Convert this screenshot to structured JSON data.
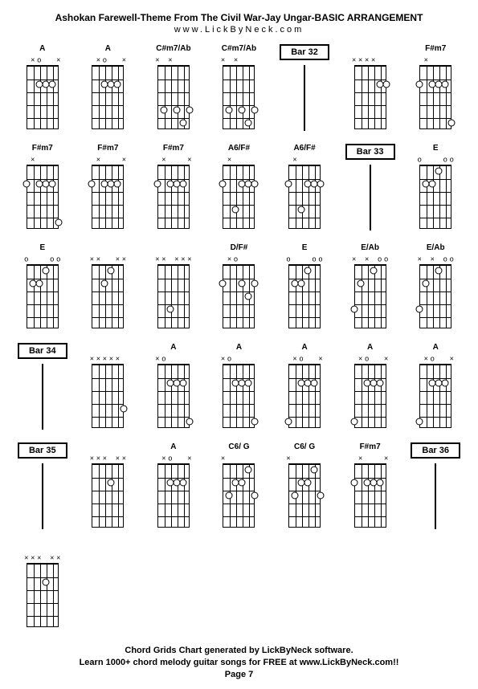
{
  "header": {
    "title": "Ashokan Farewell-Theme From The Civil War-Jay Ungar-BASIC ARRANGEMENT",
    "subtitle": "www.LickByNeck.com"
  },
  "footer": {
    "line1": "Chord Grids Chart generated by LickByNeck software.",
    "line2": "Learn 1000+ chord melody guitar songs for FREE at www.LickByNeck.com!!",
    "page": "Page 7"
  },
  "layout": {
    "cols": 7,
    "rows": 5,
    "stringCount": 6,
    "fretCount": 5,
    "colors": {
      "background": "#ffffff",
      "line": "#000000",
      "dotFill": "#ffffff",
      "text": "#000000"
    },
    "sizes": {
      "title_font": 12,
      "label_font": 10,
      "footer_font": 11,
      "diagram_w": 60,
      "diagram_h": 100,
      "fretboard_w": 40,
      "fretboard_h": 80
    }
  },
  "cells": [
    {
      "type": "chord",
      "label": "A",
      "top": [
        "",
        "x",
        "o",
        "",
        "",
        "x"
      ],
      "dots": [
        [
          4,
          2
        ],
        [
          3,
          2
        ],
        [
          2,
          2
        ]
      ]
    },
    {
      "type": "chord",
      "label": "A",
      "top": [
        "",
        "x",
        "o",
        "",
        "",
        "x"
      ],
      "dots": [
        [
          4,
          2
        ],
        [
          3,
          2
        ],
        [
          2,
          2
        ]
      ]
    },
    {
      "type": "chord",
      "label": "C#m7/Ab",
      "top": [
        "x",
        "",
        "x",
        "",
        "",
        ""
      ],
      "dots": [
        [
          5,
          4
        ],
        [
          2,
          5
        ],
        [
          3,
          4
        ],
        [
          1,
          4
        ]
      ]
    },
    {
      "type": "chord",
      "label": "C#m7/Ab",
      "top": [
        "x",
        "",
        "x",
        "",
        "",
        ""
      ],
      "dots": [
        [
          5,
          4
        ],
        [
          2,
          5
        ],
        [
          3,
          4
        ],
        [
          1,
          4
        ]
      ]
    },
    {
      "type": "bar",
      "label": "Bar 32"
    },
    {
      "type": "chord",
      "label": "",
      "top": [
        "x",
        "x",
        "x",
        "x",
        "",
        ""
      ],
      "dots": [
        [
          2,
          2
        ],
        [
          1,
          2
        ]
      ]
    },
    {
      "type": "chord",
      "label": "F#m7",
      "top": [
        "",
        "x",
        "",
        "",
        "",
        ""
      ],
      "dots": [
        [
          6,
          2
        ],
        [
          4,
          2
        ],
        [
          3,
          2
        ],
        [
          2,
          2
        ],
        [
          1,
          5
        ]
      ]
    },
    {
      "type": "chord",
      "label": "F#m7",
      "top": [
        "",
        "x",
        "",
        "",
        "",
        ""
      ],
      "dots": [
        [
          6,
          2
        ],
        [
          4,
          2
        ],
        [
          3,
          2
        ],
        [
          2,
          2
        ],
        [
          1,
          5
        ]
      ]
    },
    {
      "type": "chord",
      "label": "F#m7",
      "top": [
        "",
        "x",
        "",
        "",
        "",
        "x"
      ],
      "dots": [
        [
          6,
          2
        ],
        [
          4,
          2
        ],
        [
          3,
          2
        ],
        [
          2,
          2
        ]
      ]
    },
    {
      "type": "chord",
      "label": "F#m7",
      "top": [
        "",
        "x",
        "",
        "",
        "",
        "x"
      ],
      "dots": [
        [
          6,
          2
        ],
        [
          4,
          2
        ],
        [
          3,
          2
        ],
        [
          2,
          2
        ]
      ]
    },
    {
      "type": "chord",
      "label": "A6/F#",
      "top": [
        "",
        "x",
        "",
        "",
        "",
        ""
      ],
      "dots": [
        [
          6,
          2
        ],
        [
          4,
          4
        ],
        [
          3,
          2
        ],
        [
          2,
          2
        ],
        [
          1,
          2
        ]
      ]
    },
    {
      "type": "chord",
      "label": "A6/F#",
      "top": [
        "",
        "x",
        "",
        "",
        "",
        ""
      ],
      "dots": [
        [
          6,
          2
        ],
        [
          4,
          4
        ],
        [
          3,
          2
        ],
        [
          2,
          2
        ],
        [
          1,
          2
        ]
      ]
    },
    {
      "type": "bar",
      "label": "Bar 33"
    },
    {
      "type": "chord",
      "label": "E",
      "top": [
        "o",
        "",
        "",
        "",
        "o",
        "o"
      ],
      "dots": [
        [
          5,
          2
        ],
        [
          4,
          2
        ],
        [
          3,
          1
        ]
      ]
    },
    {
      "type": "chord",
      "label": "E",
      "top": [
        "o",
        "",
        "",
        "",
        "o",
        "o"
      ],
      "dots": [
        [
          5,
          2
        ],
        [
          4,
          2
        ],
        [
          3,
          1
        ]
      ]
    },
    {
      "type": "chord",
      "label": "",
      "top": [
        "x",
        "x",
        "",
        "",
        "x",
        "x"
      ],
      "dots": [
        [
          4,
          2
        ],
        [
          3,
          1
        ]
      ]
    },
    {
      "type": "chord",
      "label": "",
      "top": [
        "x",
        "x",
        "",
        "x",
        "x",
        "x"
      ],
      "dots": [
        [
          4,
          4
        ]
      ]
    },
    {
      "type": "chord",
      "label": "D/F#",
      "top": [
        "",
        "x",
        "o",
        "",
        "",
        ""
      ],
      "dots": [
        [
          6,
          2
        ],
        [
          3,
          2
        ],
        [
          2,
          3
        ],
        [
          1,
          2
        ]
      ]
    },
    {
      "type": "chord",
      "label": "E",
      "top": [
        "o",
        "",
        "",
        "",
        "o",
        "o"
      ],
      "dots": [
        [
          5,
          2
        ],
        [
          4,
          2
        ],
        [
          3,
          1
        ]
      ]
    },
    {
      "type": "chord",
      "label": "E/Ab",
      "top": [
        "x",
        "",
        "x",
        "",
        "o",
        "o"
      ],
      "dots": [
        [
          6,
          4
        ],
        [
          5,
          2
        ],
        [
          3,
          1
        ]
      ]
    },
    {
      "type": "chord",
      "label": "E/Ab",
      "top": [
        "x",
        "",
        "x",
        "",
        "o",
        "o"
      ],
      "dots": [
        [
          6,
          4
        ],
        [
          5,
          2
        ],
        [
          3,
          1
        ]
      ]
    },
    {
      "type": "bar",
      "label": "Bar 34"
    },
    {
      "type": "chord",
      "label": "",
      "top": [
        "x",
        "x",
        "x",
        "x",
        "x",
        ""
      ],
      "dots": [
        [
          1,
          4
        ]
      ]
    },
    {
      "type": "chord",
      "label": "A",
      "top": [
        "x",
        "o",
        "",
        "",
        "",
        ""
      ],
      "dots": [
        [
          4,
          2
        ],
        [
          3,
          2
        ],
        [
          2,
          2
        ],
        [
          1,
          5
        ]
      ]
    },
    {
      "type": "chord",
      "label": "A",
      "top": [
        "x",
        "o",
        "",
        "",
        "",
        ""
      ],
      "dots": [
        [
          4,
          2
        ],
        [
          3,
          2
        ],
        [
          2,
          2
        ],
        [
          1,
          5
        ]
      ]
    },
    {
      "type": "chord",
      "label": "A",
      "top": [
        "",
        "x",
        "o",
        "",
        "",
        "x"
      ],
      "dots": [
        [
          6,
          5
        ],
        [
          4,
          2
        ],
        [
          3,
          2
        ],
        [
          2,
          2
        ]
      ]
    },
    {
      "type": "chord",
      "label": "A",
      "top": [
        "",
        "x",
        "o",
        "",
        "",
        "x"
      ],
      "dots": [
        [
          6,
          5
        ],
        [
          4,
          2
        ],
        [
          3,
          2
        ],
        [
          2,
          2
        ]
      ]
    },
    {
      "type": "chord",
      "label": "A",
      "top": [
        "",
        "x",
        "o",
        "",
        "",
        "x"
      ],
      "dots": [
        [
          6,
          5
        ],
        [
          4,
          2
        ],
        [
          3,
          2
        ],
        [
          2,
          2
        ]
      ]
    },
    {
      "type": "bar",
      "label": "Bar 35"
    },
    {
      "type": "chord",
      "label": "",
      "top": [
        "x",
        "x",
        "x",
        "",
        "x",
        "x"
      ],
      "dots": [
        [
          3,
          2
        ]
      ]
    },
    {
      "type": "chord",
      "label": "A",
      "top": [
        "",
        "x",
        "o",
        "",
        "",
        "x"
      ],
      "dots": [
        [
          4,
          2
        ],
        [
          3,
          2
        ],
        [
          2,
          2
        ]
      ]
    },
    {
      "type": "chord",
      "label": "C6/ G",
      "top": [
        "x",
        "",
        "",
        "",
        "",
        ""
      ],
      "dots": [
        [
          5,
          3
        ],
        [
          4,
          2
        ],
        [
          3,
          2
        ],
        [
          2,
          1
        ],
        [
          1,
          3
        ]
      ]
    },
    {
      "type": "chord",
      "label": "C6/ G",
      "top": [
        "x",
        "",
        "",
        "",
        "",
        ""
      ],
      "dots": [
        [
          5,
          3
        ],
        [
          4,
          2
        ],
        [
          3,
          2
        ],
        [
          2,
          1
        ],
        [
          1,
          3
        ]
      ]
    },
    {
      "type": "chord",
      "label": "F#m7",
      "top": [
        "",
        "x",
        "",
        "",
        "",
        "x"
      ],
      "dots": [
        [
          6,
          2
        ],
        [
          4,
          2
        ],
        [
          3,
          2
        ],
        [
          2,
          2
        ]
      ]
    },
    {
      "type": "bar",
      "label": "Bar 36"
    },
    {
      "type": "chord",
      "label": "",
      "top": [
        "x",
        "x",
        "x",
        "",
        "x",
        "x"
      ],
      "dots": [
        [
          3,
          2
        ]
      ]
    }
  ]
}
